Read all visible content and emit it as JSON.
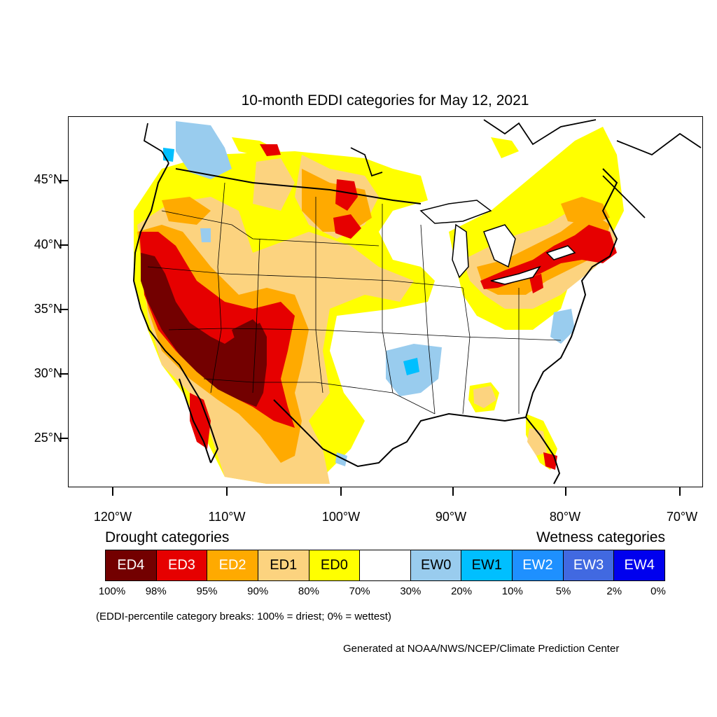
{
  "title": "10-month EDDI categories for May 12, 2021",
  "lat_labels": [
    "45°N",
    "40°N",
    "35°N",
    "30°N",
    "25°N"
  ],
  "lon_labels": [
    "120°W",
    "110°W",
    "100°W",
    "90°W",
    "80°W",
    "70°W"
  ],
  "legend": {
    "drought_heading": "Drought categories",
    "wetness_heading": "Wetness categories",
    "categories": [
      {
        "label": "ED4",
        "color": "#730000",
        "text_color": "#ffffff"
      },
      {
        "label": "ED3",
        "color": "#e60000",
        "text_color": "#ffffff"
      },
      {
        "label": "ED2",
        "color": "#ffaa00",
        "text_color": "#ffffff"
      },
      {
        "label": "ED1",
        "color": "#fcd37f",
        "text_color": "#000000"
      },
      {
        "label": "ED0",
        "color": "#ffff00",
        "text_color": "#000000"
      },
      {
        "label": "",
        "color": "#ffffff",
        "text_color": "#000000"
      },
      {
        "label": "EW0",
        "color": "#99ccee",
        "text_color": "#000000"
      },
      {
        "label": "EW1",
        "color": "#00bfff",
        "text_color": "#000000"
      },
      {
        "label": "EW2",
        "color": "#1e90ff",
        "text_color": "#ffffff"
      },
      {
        "label": "EW3",
        "color": "#4169e1",
        "text_color": "#ffffff"
      },
      {
        "label": "EW4",
        "color": "#0000ee",
        "text_color": "#ffffff"
      }
    ],
    "percentiles": [
      "100%",
      "98%",
      "95%",
      "90%",
      "80%",
      "70%",
      "30%",
      "20%",
      "10%",
      "5%",
      "2%",
      "0%"
    ]
  },
  "note": "(EDDI-percentile category breaks: 100% = driest; 0% = wettest)",
  "credit": "Generated at NOAA/NWS/NCEP/Climate Prediction Center"
}
